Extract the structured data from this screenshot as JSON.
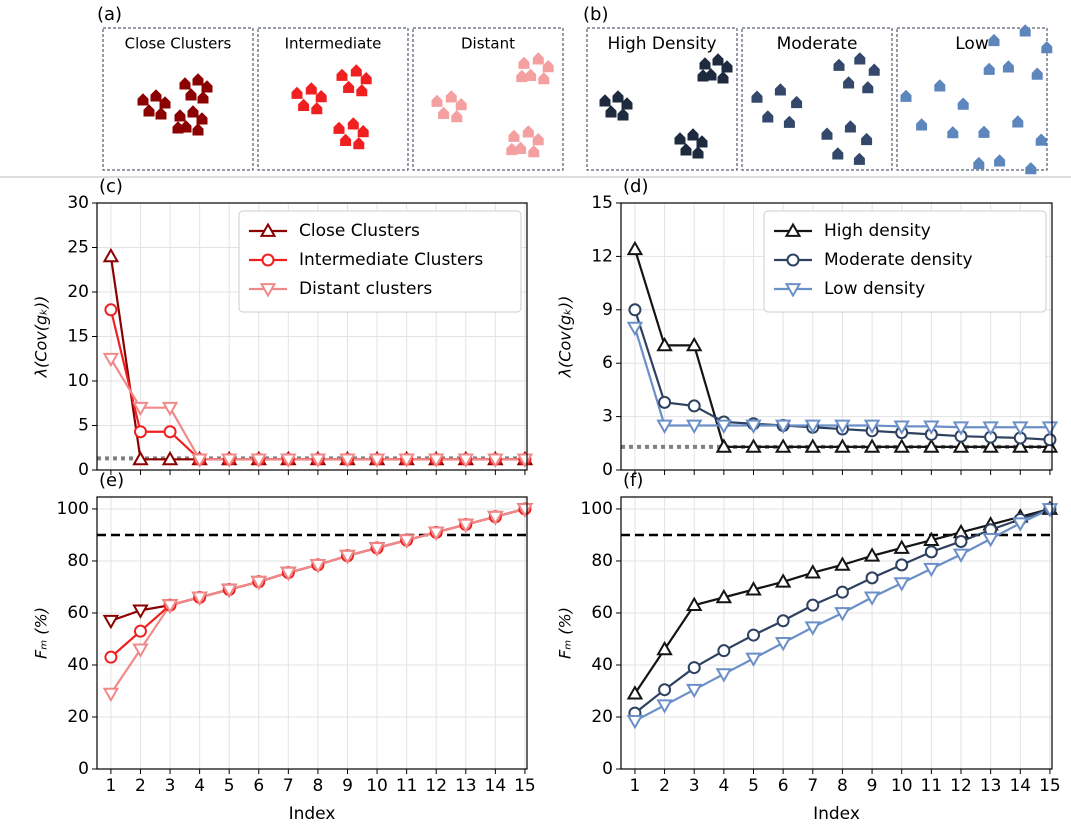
{
  "illustrations": [
    {
      "label": "(a)",
      "boxes": [
        "Close Clusters",
        "Intermediate",
        "Distant"
      ]
    },
    {
      "label": "(b)",
      "boxes": [
        "High Density",
        "Moderate",
        "Low"
      ]
    }
  ],
  "chart_data": [
    {
      "type": "line",
      "panel_label": "(c)",
      "ylabel": "λ(Cov(gₖ))",
      "x": [
        1,
        2,
        3,
        4,
        5,
        6,
        7,
        8,
        9,
        10,
        11,
        12,
        13,
        14,
        15
      ],
      "xlim": [
        0.53,
        15.07
      ],
      "xticks": [
        1,
        2,
        3,
        4,
        5,
        6,
        7,
        8,
        9,
        10,
        11,
        12,
        13,
        14,
        15
      ],
      "xtick_labels": false,
      "ylim": [
        0,
        30
      ],
      "yticks": [
        0,
        5,
        10,
        15,
        20,
        25,
        30
      ],
      "grid": true,
      "legend": "upper right",
      "hlines": [
        {
          "value": 1.3,
          "color": "#808080",
          "style": "dotted"
        }
      ],
      "series": [
        {
          "name": "Close Clusters",
          "color": "#8b0000",
          "marker": "triangle-up",
          "values": [
            24,
            1.2,
            1.2,
            1.2,
            1.2,
            1.2,
            1.2,
            1.2,
            1.2,
            1.2,
            1.2,
            1.2,
            1.2,
            1.2,
            1.2
          ]
        },
        {
          "name": "Intermediate Clusters",
          "color": "#f02020",
          "marker": "circle",
          "values": [
            18,
            4.3,
            4.3,
            1.2,
            1.2,
            1.2,
            1.2,
            1.2,
            1.2,
            1.2,
            1.2,
            1.2,
            1.2,
            1.2,
            1.2
          ]
        },
        {
          "name": "Distant clusters",
          "color": "#f08a8a",
          "marker": "triangle-down",
          "values": [
            12.5,
            7,
            7,
            1.2,
            1.2,
            1.2,
            1.2,
            1.2,
            1.2,
            1.2,
            1.2,
            1.2,
            1.2,
            1.2,
            1.2
          ]
        }
      ]
    },
    {
      "type": "line",
      "panel_label": "(d)",
      "ylabel": "λ(Cov(gₖ))",
      "x": [
        1,
        2,
        3,
        4,
        5,
        6,
        7,
        8,
        9,
        10,
        11,
        12,
        13,
        14,
        15
      ],
      "xlim": [
        0.53,
        15.07
      ],
      "xticks": [
        1,
        2,
        3,
        4,
        5,
        6,
        7,
        8,
        9,
        10,
        11,
        12,
        13,
        14,
        15
      ],
      "xtick_labels": false,
      "ylim": [
        0,
        15
      ],
      "yticks": [
        0,
        3,
        6,
        9,
        12,
        15
      ],
      "grid": true,
      "legend": "upper right",
      "hlines": [
        {
          "value": 1.3,
          "color": "#808080",
          "style": "dotted"
        }
      ],
      "series": [
        {
          "name": "High density",
          "color": "#141414",
          "marker": "triangle-up",
          "values": [
            12.4,
            7,
            7,
            1.3,
            1.3,
            1.3,
            1.3,
            1.3,
            1.3,
            1.3,
            1.3,
            1.3,
            1.3,
            1.3,
            1.3
          ]
        },
        {
          "name": "Moderate density",
          "color": "#2e4160",
          "marker": "circle",
          "values": [
            9,
            3.8,
            3.6,
            2.7,
            2.6,
            2.5,
            2.4,
            2.3,
            2.2,
            2.1,
            2.0,
            1.9,
            1.85,
            1.8,
            1.7
          ]
        },
        {
          "name": "Low density",
          "color": "#6b8fc7",
          "marker": "triangle-down",
          "values": [
            8,
            2.5,
            2.5,
            2.5,
            2.5,
            2.5,
            2.5,
            2.5,
            2.5,
            2.45,
            2.45,
            2.4,
            2.4,
            2.4,
            2.4
          ]
        }
      ]
    },
    {
      "type": "line",
      "panel_label": "(e)",
      "ylabel": "Fₘ (%)",
      "xlabel": "Index",
      "x": [
        1,
        2,
        3,
        4,
        5,
        6,
        7,
        8,
        9,
        10,
        11,
        12,
        13,
        14,
        15
      ],
      "xlim": [
        0.53,
        15.07
      ],
      "xticks": [
        1,
        2,
        3,
        4,
        5,
        6,
        7,
        8,
        9,
        10,
        11,
        12,
        13,
        14,
        15
      ],
      "xtick_labels": true,
      "ylim": [
        0,
        104.6
      ],
      "yticks": [
        0,
        20,
        40,
        60,
        80,
        100
      ],
      "grid": true,
      "hlines": [
        {
          "value": 90,
          "color": "#000000",
          "style": "dashed"
        }
      ],
      "series": [
        {
          "name": "Close Clusters",
          "color": "#8b0000",
          "marker": "triangle-down",
          "values": [
            57,
            61,
            63,
            66,
            69,
            72,
            75.5,
            78.5,
            82,
            85,
            88,
            91,
            94,
            97,
            100
          ]
        },
        {
          "name": "Intermediate Clusters",
          "color": "#f02020",
          "marker": "circle",
          "values": [
            43,
            53,
            63,
            66,
            69,
            72,
            75.5,
            78.5,
            82,
            85,
            88,
            91,
            94,
            97,
            100
          ]
        },
        {
          "name": "Distant clusters",
          "color": "#f08a8a",
          "marker": "triangle-down",
          "values": [
            29,
            46,
            63,
            66,
            69,
            72,
            75.5,
            78.5,
            82,
            85,
            88,
            91,
            94,
            97,
            100
          ]
        }
      ]
    },
    {
      "type": "line",
      "panel_label": "(f)",
      "ylabel": "Fₘ (%)",
      "xlabel": "Index",
      "x": [
        1,
        2,
        3,
        4,
        5,
        6,
        7,
        8,
        9,
        10,
        11,
        12,
        13,
        14,
        15
      ],
      "xlim": [
        0.53,
        15.07
      ],
      "xticks": [
        1,
        2,
        3,
        4,
        5,
        6,
        7,
        8,
        9,
        10,
        11,
        12,
        13,
        14,
        15
      ],
      "xtick_labels": true,
      "ylim": [
        0,
        104.6
      ],
      "yticks": [
        0,
        20,
        40,
        60,
        80,
        100
      ],
      "grid": true,
      "hlines": [
        {
          "value": 90,
          "color": "#000000",
          "style": "dashed"
        }
      ],
      "series": [
        {
          "name": "High density",
          "color": "#141414",
          "marker": "triangle-up",
          "values": [
            29,
            46,
            63,
            66,
            69,
            72,
            75.5,
            78.5,
            82,
            85,
            88,
            91,
            94,
            97,
            100
          ]
        },
        {
          "name": "Moderate density",
          "color": "#2e4160",
          "marker": "circle",
          "values": [
            21.5,
            30.5,
            39,
            45.5,
            51.5,
            57,
            63,
            68,
            73.5,
            78.5,
            83.5,
            87.5,
            92,
            96,
            100
          ]
        },
        {
          "name": "Low density",
          "color": "#6b8fc7",
          "marker": "triangle-down",
          "values": [
            18.5,
            24.5,
            30.5,
            36.5,
            42.5,
            48.5,
            54.5,
            60,
            66,
            71.5,
            77,
            82.5,
            88.5,
            94.5,
            100
          ]
        }
      ]
    }
  ]
}
